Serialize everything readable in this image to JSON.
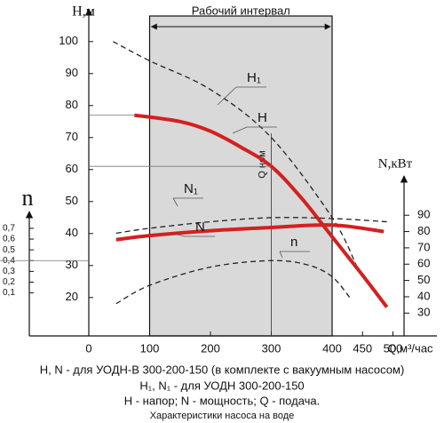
{
  "chart_data": {
    "type": "line",
    "x_label": "Q,м³/час",
    "y_label": "H,м",
    "y2_label": "N,кВт",
    "y3_label": "n",
    "interval_label": "Рабочий интервал",
    "interval": [
      100,
      400
    ],
    "q_nom_label": "Q ном",
    "q_nom": 300,
    "xlim": [
      0,
      500
    ],
    "xticks": [
      0,
      100,
      200,
      300,
      400,
      450,
      500
    ],
    "ylim": [
      8,
      108
    ],
    "yticks": [
      20,
      30,
      40,
      50,
      60,
      70,
      80,
      90,
      100
    ],
    "y2lim": [
      16,
      113
    ],
    "y2ticks": [
      30,
      40,
      50,
      60,
      70,
      80,
      90
    ],
    "y3lim": [
      -0.3,
      0.84
    ],
    "y3ticks": [
      {
        "value": 0.1,
        "label": "0,1"
      },
      {
        "value": 0.2,
        "label": "0,2"
      },
      {
        "value": 0.3,
        "label": "0,3"
      },
      {
        "value": 0.4,
        "label": "0,4"
      },
      {
        "value": 0.5,
        "label": "0,5"
      },
      {
        "value": 0.6,
        "label": "0,6"
      },
      {
        "value": 0.7,
        "label": "0,7"
      }
    ],
    "series": [
      {
        "name": "H₁",
        "color": "#222222",
        "dashed": true,
        "axis": "y",
        "x": [
          40,
          100,
          200,
          300,
          400,
          440
        ],
        "values": [
          100,
          94,
          85,
          70,
          45,
          30
        ]
      },
      {
        "name": "H",
        "color": "#d42020",
        "dashed": false,
        "axis": "y",
        "x": [
          75,
          150,
          200,
          250,
          300,
          350,
          400,
          450,
          490
        ],
        "values": [
          77,
          75,
          72,
          67,
          61,
          51,
          39,
          27,
          17
        ]
      },
      {
        "name": "N₁",
        "color": "#222222",
        "dashed": true,
        "axis": "y2",
        "x": [
          45,
          100,
          200,
          300,
          400,
          490
        ],
        "values": [
          79,
          82,
          86,
          88.5,
          88,
          86
        ]
      },
      {
        "name": "N",
        "color": "#d42020",
        "dashed": false,
        "axis": "y2",
        "x": [
          45,
          100,
          200,
          300,
          400,
          485
        ],
        "values": [
          75,
          77.5,
          80.5,
          82.5,
          84,
          80
        ]
      },
      {
        "name": "n",
        "color": "#222222",
        "dashed": true,
        "axis": "y3",
        "x": [
          45,
          100,
          200,
          300,
          360,
          400,
          430
        ],
        "values": [
          0,
          0.17,
          0.34,
          0.4,
          0.36,
          0.25,
          0.05
        ]
      }
    ],
    "notes": [
      "H, N - для УОДН-В 300-200-150 (в комплекте с вакуумным насосом)",
      "H₁, N₁ - для УОДН 300-200-150",
      "H - напор; N - мощность; Q - подача.",
      "Характеристики насоса на воде"
    ]
  }
}
